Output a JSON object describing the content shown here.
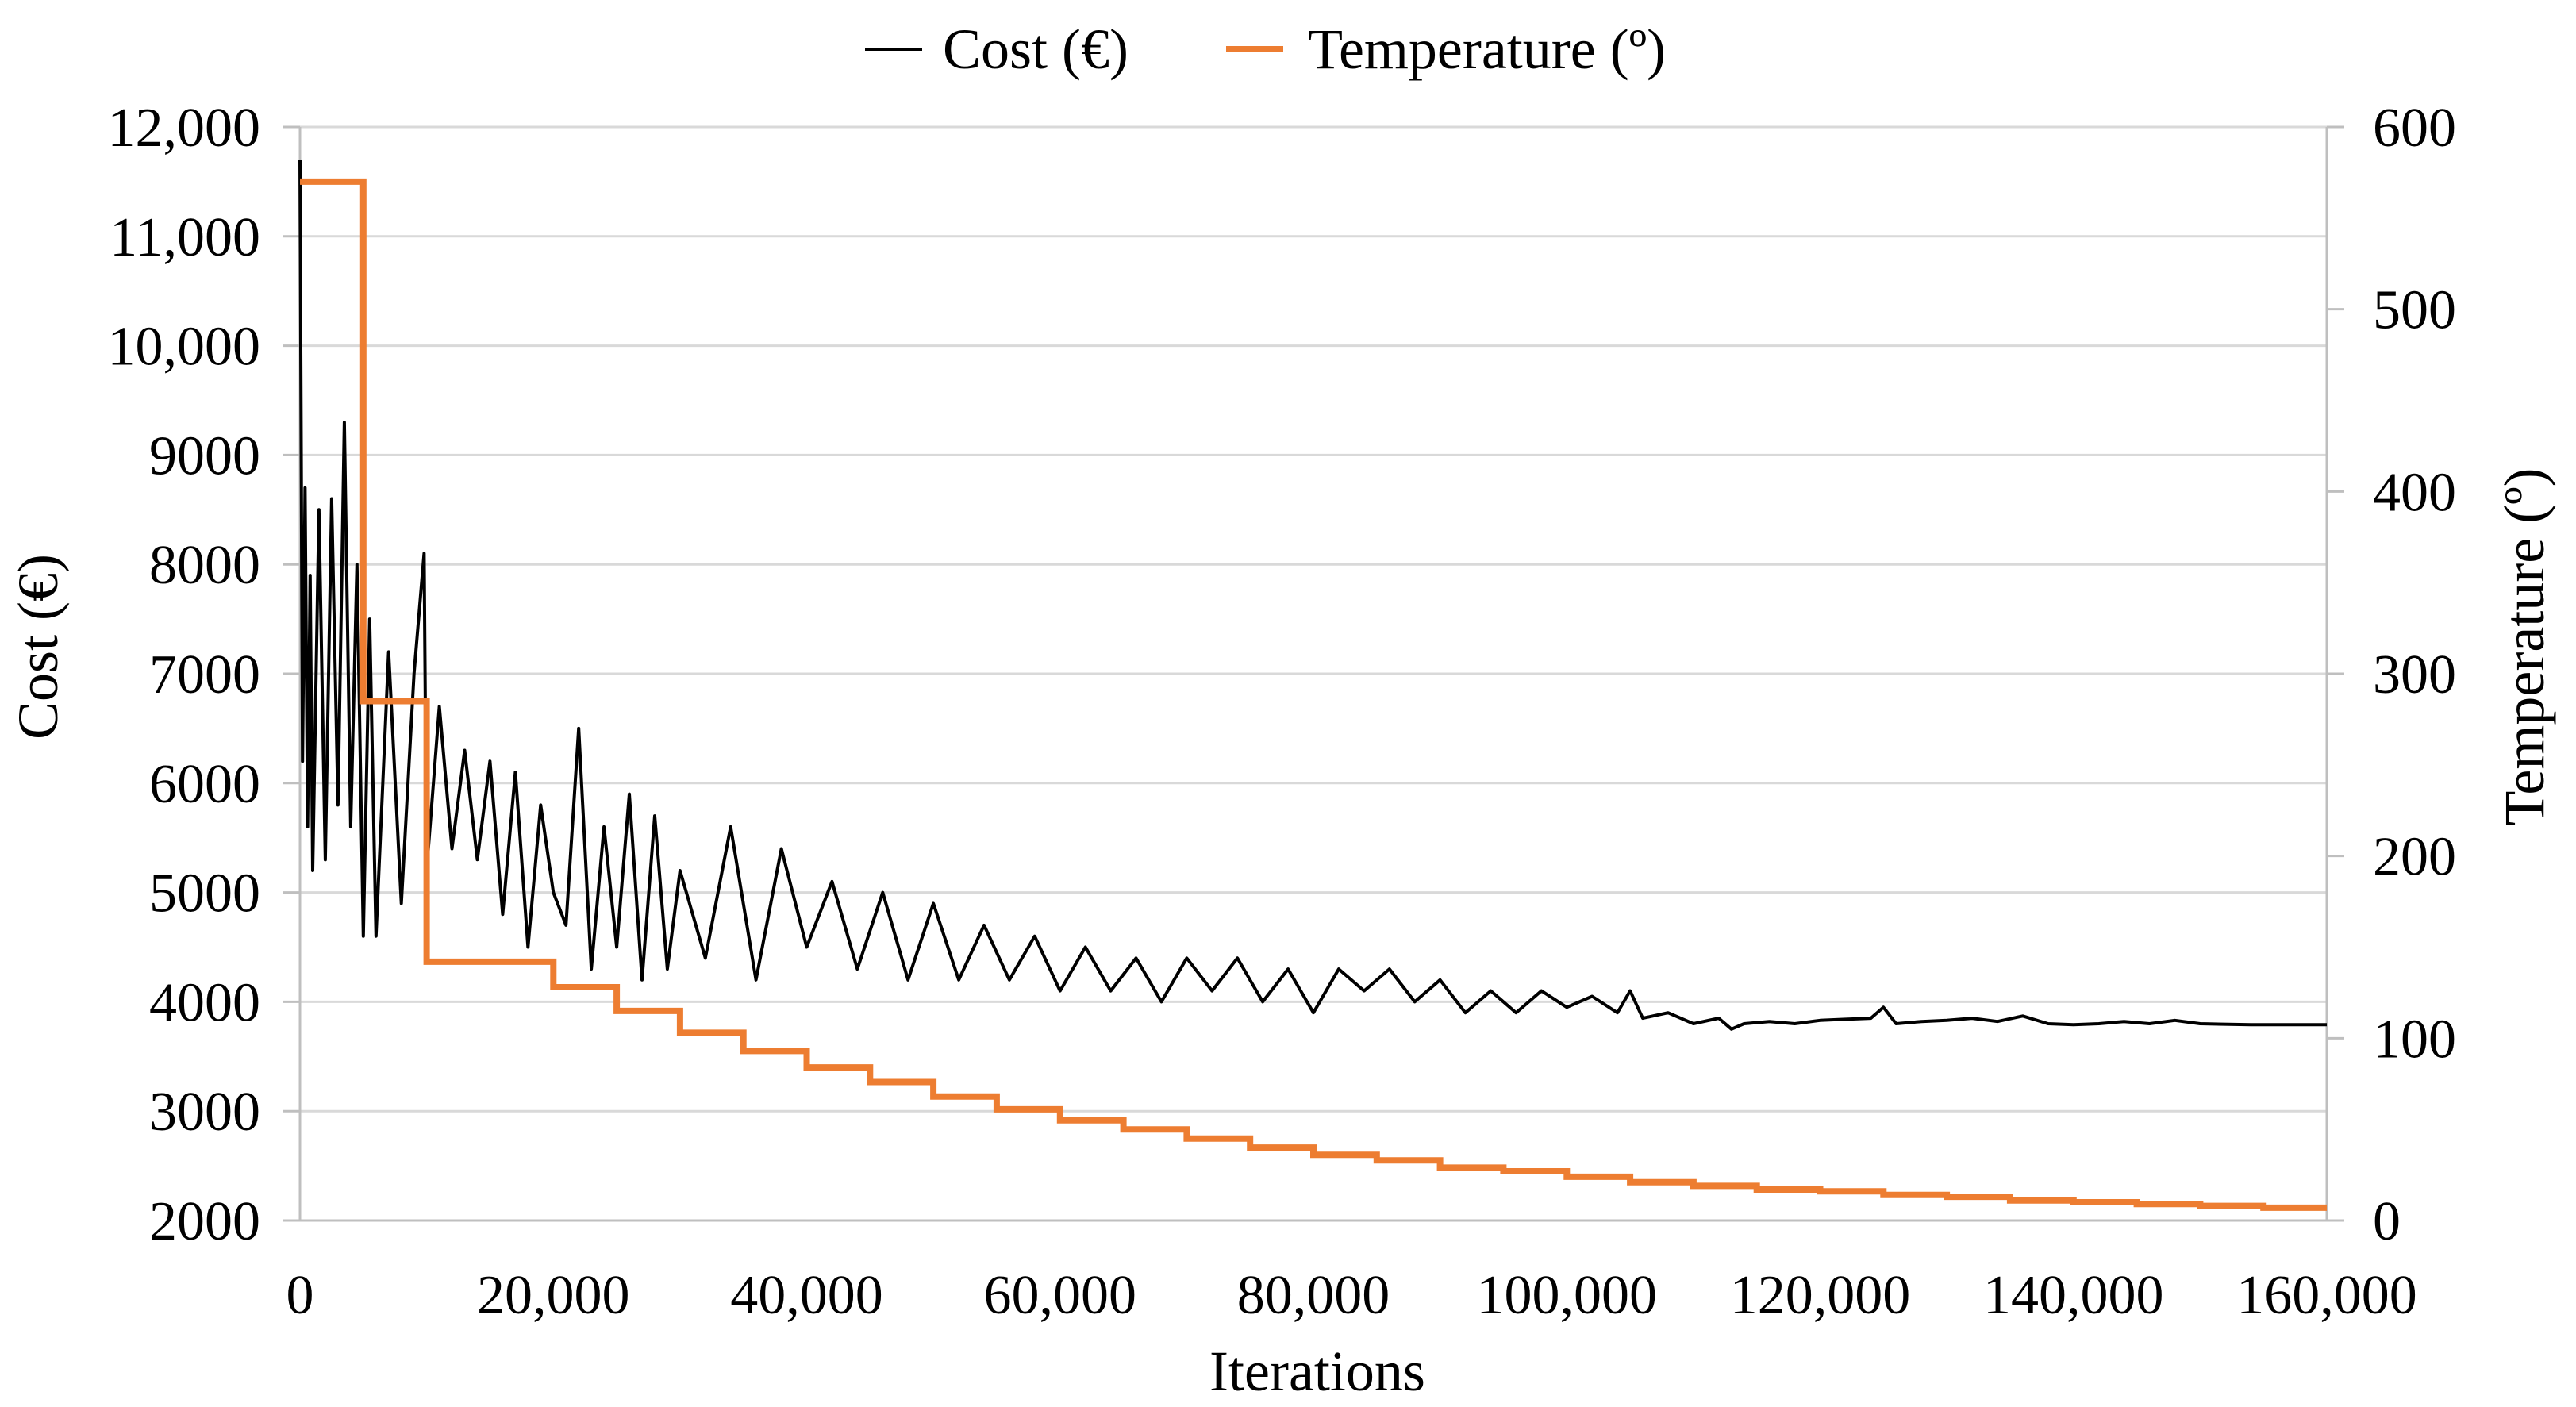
{
  "chart_data": {
    "type": "line",
    "xlabel": "Iterations",
    "ylabel": "Cost (€)",
    "y2label": "Temperature (º)",
    "xlim": [
      0,
      160000
    ],
    "ylim": [
      2000,
      12000
    ],
    "y2lim": [
      0,
      600
    ],
    "grid": true,
    "legend_position": "top-center",
    "x_ticks": [
      "0",
      "20,000",
      "40,000",
      "60,000",
      "80,000",
      "100,000",
      "120,000",
      "140,000",
      "160,000"
    ],
    "x_tick_values": [
      0,
      20000,
      40000,
      60000,
      80000,
      100000,
      120000,
      140000,
      160000
    ],
    "y_ticks": [
      "2000",
      "3000",
      "4000",
      "5000",
      "6000",
      "7000",
      "8000",
      "9000",
      "10,000",
      "11,000",
      "12,000"
    ],
    "y_tick_values": [
      2000,
      3000,
      4000,
      5000,
      6000,
      7000,
      8000,
      9000,
      10000,
      11000,
      12000
    ],
    "y2_ticks": [
      "0",
      "100",
      "200",
      "300",
      "400",
      "500",
      "600"
    ],
    "y2_tick_values": [
      0,
      100,
      200,
      300,
      400,
      500,
      600
    ],
    "series": [
      {
        "name": "Cost (€)",
        "axis": "left",
        "color": "#000000",
        "x": [
          0,
          200,
          400,
          600,
          800,
          1000,
          1500,
          2000,
          2500,
          3000,
          3500,
          4000,
          4500,
          5000,
          5500,
          6000,
          7000,
          8000,
          9000,
          9800,
          10000,
          11000,
          12000,
          13000,
          14000,
          15000,
          16000,
          17000,
          18000,
          19000,
          20000,
          21000,
          22000,
          23000,
          24000,
          25000,
          26000,
          27000,
          28000,
          29000,
          30000,
          32000,
          34000,
          36000,
          38000,
          40000,
          42000,
          44000,
          46000,
          48000,
          50000,
          52000,
          54000,
          56000,
          58000,
          60000,
          62000,
          64000,
          66000,
          68000,
          70000,
          72000,
          74000,
          76000,
          78000,
          80000,
          82000,
          84000,
          86000,
          88000,
          90000,
          92000,
          94000,
          96000,
          98000,
          100000,
          102000,
          104000,
          105000,
          106000,
          108000,
          110000,
          112000,
          113000,
          114000,
          116000,
          118000,
          120000,
          122000,
          124000,
          125000,
          126000,
          128000,
          130000,
          132000,
          134000,
          136000,
          138000,
          140000,
          142000,
          144000,
          146000,
          148000,
          150000,
          154000,
          158000,
          160000
        ],
        "values": [
          11700,
          6200,
          8700,
          5600,
          7900,
          5200,
          8500,
          5300,
          8600,
          5800,
          9300,
          5600,
          8000,
          4600,
          7500,
          4600,
          7200,
          4900,
          7000,
          8100,
          5200,
          6700,
          5400,
          6300,
          5300,
          6200,
          4800,
          6100,
          4500,
          5800,
          5000,
          4700,
          6500,
          4300,
          5600,
          4500,
          5900,
          4200,
          5700,
          4300,
          5200,
          4400,
          5600,
          4200,
          5400,
          4500,
          5100,
          4300,
          5000,
          4200,
          4900,
          4200,
          4700,
          4200,
          4600,
          4100,
          4500,
          4100,
          4400,
          4000,
          4400,
          4100,
          4400,
          4000,
          4300,
          3900,
          4300,
          4100,
          4300,
          4000,
          4200,
          3900,
          4100,
          3900,
          4100,
          3950,
          4050,
          3900,
          4100,
          3850,
          3900,
          3800,
          3850,
          3750,
          3800,
          3820,
          3800,
          3830,
          3840,
          3850,
          3950,
          3800,
          3820,
          3830,
          3850,
          3820,
          3870,
          3800,
          3790,
          3800,
          3820,
          3800,
          3830,
          3800,
          3790,
          3790,
          3790
        ]
      },
      {
        "name": "Temperature (º)",
        "axis": "right",
        "color": "#ED7D31",
        "x": [
          0,
          5000,
          10000,
          20000,
          25000,
          30000,
          35000,
          40000,
          45000,
          50000,
          55000,
          60000,
          65000,
          70000,
          75000,
          80000,
          85000,
          90000,
          95000,
          100000,
          105000,
          110000,
          115000,
          120000,
          125000,
          130000,
          135000,
          140000,
          145000,
          150000,
          155000,
          160000
        ],
        "values": [
          570,
          285,
          142,
          128,
          115,
          103,
          93,
          84,
          76,
          68,
          61,
          55,
          50,
          45,
          40,
          36,
          33,
          29,
          27,
          24,
          21,
          19,
          17,
          16,
          14,
          13,
          11,
          10,
          9,
          8,
          7,
          7
        ]
      }
    ]
  }
}
